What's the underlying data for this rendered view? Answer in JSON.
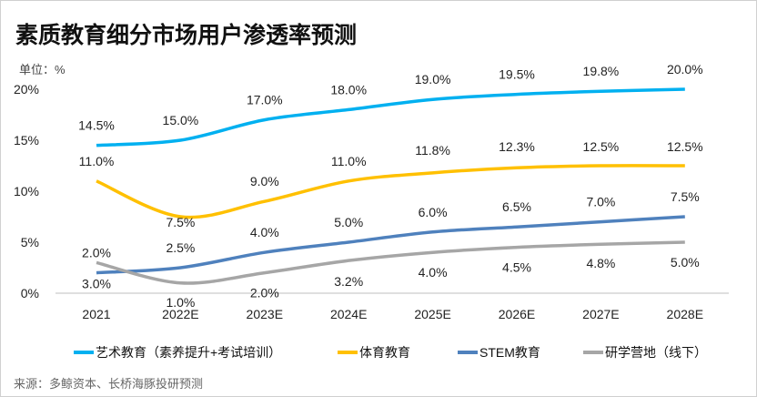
{
  "title": "素质教育细分市场用户渗透率预测",
  "source": "来源：多鲸资本、长桥海豚投研预测",
  "chart_data": {
    "type": "line",
    "title": "素质教育细分市场用户渗透率预测",
    "unit_label": "单位：%",
    "categories": [
      "2021",
      "2022E",
      "2023E",
      "2024E",
      "2025E",
      "2026E",
      "2027E",
      "2028E"
    ],
    "ylim": [
      0,
      20
    ],
    "yticks": [
      "0%",
      "5%",
      "10%",
      "15%",
      "20%"
    ],
    "grid": false,
    "legend": "bottom",
    "series": [
      {
        "name": "艺术教育（素养提升+考试培训）",
        "color": "#00B0F0",
        "values": [
          14.5,
          15.0,
          17.0,
          18.0,
          19.0,
          19.5,
          19.8,
          20.0
        ],
        "labels": [
          "14.5%",
          "15.0%",
          "17.0%",
          "18.0%",
          "19.0%",
          "19.5%",
          "19.8%",
          "20.0%"
        ]
      },
      {
        "name": "体育教育",
        "color": "#FFC000",
        "values": [
          11.0,
          7.5,
          9.0,
          11.0,
          11.8,
          12.3,
          12.5,
          12.5
        ],
        "labels": [
          "11.0%",
          "7.5%",
          "9.0%",
          "11.0%",
          "11.8%",
          "12.3%",
          "12.5%",
          "12.5%"
        ]
      },
      {
        "name": "STEM教育",
        "color": "#4F81BD",
        "values": [
          2.0,
          2.5,
          4.0,
          5.0,
          6.0,
          6.5,
          7.0,
          7.5
        ],
        "labels": [
          "2.0%",
          "2.5%",
          "4.0%",
          "5.0%",
          "6.0%",
          "6.5%",
          "7.0%",
          "7.5%"
        ]
      },
      {
        "name": "研学营地（线下）",
        "color": "#A6A6A6",
        "values": [
          3.0,
          1.0,
          2.0,
          3.2,
          4.0,
          4.5,
          4.8,
          5.0
        ],
        "labels": [
          "3.0%",
          "1.0%",
          "2.0%",
          "3.2%",
          "4.0%",
          "4.5%",
          "4.8%",
          "5.0%"
        ]
      }
    ]
  }
}
